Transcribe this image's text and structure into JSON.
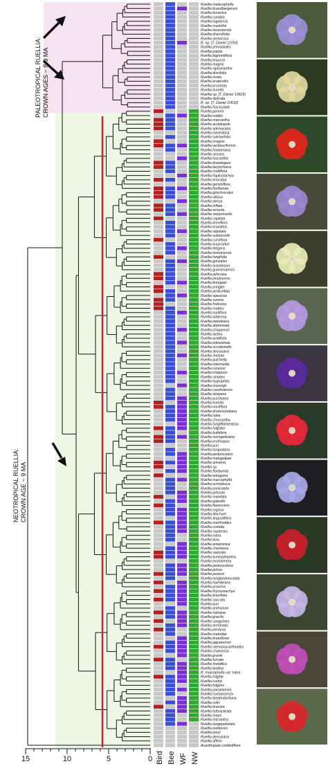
{
  "clade_labels": {
    "paleotropical_line1": "PALEOTROPICAL RUELLIA:",
    "paleotropical_line2": "CROWN AGES ~ 8-9 MA",
    "neotropical_line1": "NEOTROPICAL RUELLIA:",
    "neotropical_line2": "CROWN AGE ~ 9 MA"
  },
  "column_labels": [
    "Bird",
    "Bee",
    "WF",
    "NW"
  ],
  "axis": {
    "ticks": [
      "15",
      "10",
      "5",
      "0"
    ]
  },
  "species": [
    "Ruellia malacophylla",
    "Ruellia brandbergensis",
    "Ruellia boranica",
    "Ruellia cordata",
    "Ruellia togoensis",
    "Ruellia marlothii",
    "Ruellia hereroensis",
    "Ruellia diversifolia",
    "Ruellia nemorosa",
    "R. sp. [T. Daniel 11053]",
    "Ruellia primuloides",
    "Ruellia patula",
    "Ruellia bignoniiflora",
    "Ruellia kraussii",
    "Ruellia magna",
    "Ruellia siphonantha",
    "Ruellia discifolia",
    "Ruellia ovata",
    "Ruellia anaticollis",
    "Ruellia prostrata",
    "Ruellia humilis",
    "Ruellia sp. [T. Daniel 10625]",
    "Ruellia delicata",
    "R. sp. [T. Daniel 10632]",
    "Ruellia fasciculata",
    "Ruellia pereirii",
    "Ruellia nobilis",
    "Ruellia macrantha",
    "Ruellia acutangula",
    "Ruellia adenocalyx",
    "Ruellia tomentosa",
    "Ruellia salviaefolia",
    "Ruellia insignis",
    "Ruellia verbasciformis",
    "Ruellia hookeriana",
    "Ruellia sessea",
    "Ruellia loucantha",
    "Ruellia brandegeei",
    "Ruellia beyrichiana",
    "Ruellia multiflora",
    "Ruellia haplostachya",
    "Ruellia eriocalyx",
    "Ruellia geminiflora",
    "Ruellia floribunda",
    "Ruellia glischrocalyx",
    "Ruellia villosa",
    "Ruellia densa",
    "Ruellia inflata",
    "Ruellia exserta",
    "Ruellia steyermarkii",
    "Ruellia capitata",
    "Ruellia breviflora",
    "Ruellia erianthos",
    "Ruellia stipulata",
    "Ruellia subsessilis",
    "Ruellia curviflora",
    "Ruellia eurycodon",
    "Ruellia elegans",
    "Ruellia hintoniorum",
    "Ruellia longifolia",
    "Ruellia gonzalez",
    "Ruellia lasiobeasa",
    "Ruellia guerreroensis",
    "Ruellia jaliscana",
    "Ruellia jimulcensis",
    "Ruellia bourgaei",
    "Ruellia pringlei",
    "Ruellia pedicellata",
    "Ruellia speciosa",
    "Ruellia sororia",
    "Ruellia fruticosa",
    "Ruellia mattea",
    "Ruellia nudiflora",
    "Ruellia tuberosa",
    "Ruellia tweediana",
    "Ruellia abbreviata",
    "Ruellia chiapensis",
    "Ruellia lactea",
    "Ruellia ovalifolia",
    "Ruellia edwardsae",
    "Ruellia occidentalis",
    "Ruellia devosiana",
    "Ruellia metzae",
    "Ruellia pulchella",
    "Ruellia intermedia",
    "Ruellia runyonii",
    "Ruellia tristanum",
    "Ruellia simplex",
    "Ruellia hygrophila",
    "Ruellia morongii",
    "Ruellia caroliniensis",
    "Ruellia strepens",
    "Ruellia purshiana",
    "Ruellia humilis",
    "Ruellia noctiflora",
    "Ruellia drummondiana",
    "Ruellia lutea",
    "Ruellia chrysantha",
    "Ruellia longifilamentosa",
    "Ruellia fulgidior",
    "Ruellia bulbifera",
    "Ruellia novogaliciana",
    "Ruellia erythropus",
    "Ruellia puri",
    "Ruellia tarapotana",
    "Ruellia peduncularis",
    "Ruellia matagalpae",
    "Ruellia amoena",
    "Ruellia sp.",
    "Ruellia floribunda",
    "Ruellia tetragona",
    "Ruellia macrophylla",
    "Ruellia ochroleuca",
    "Ruellia paniculata",
    "Ruellia pilosula",
    "Ruellia mandata",
    "Ruellia galeottii",
    "Ruellia flavescens",
    "Ruellia rugosa",
    "Ruellia blechum",
    "Ruellia angustiflora",
    "Ruellia menthoides",
    "Ruellia costata",
    "Ruellia saulensis",
    "Ruellia rubra",
    "Ruellia laxa",
    "Ruellia amazonica",
    "Ruellia chartacea",
    "Ruellia saxicola",
    "Ruellia eumorphantha",
    "Ruellia exostemma",
    "Ruellia pedunculosa",
    "Ruellia pilosa",
    "Ruellia pearcei",
    "Ruellia longipedunculata",
    "Ruellia haenkeana",
    "Ruellia proxima",
    "Ruellia thyrsostachya",
    "Ruellia brevifolia",
    "Ruellia saccata",
    "Ruellia puri",
    "Ruellia anthurium",
    "Ruellia rutziana",
    "Ruellia gracilis",
    "Ruellia sanguinea",
    "Ruellia terminalis",
    "Ruellia perdusa",
    "Ruellia matudae",
    "Ruellia breedlovei",
    "Ruellia jaguarensis",
    "Ruellia stemonacanthoides",
    "Ruellia chamessa",
    "Ruellia grantii",
    "Ruellia furcata",
    "Ruellia metallica",
    "Ruellia biolleyi",
    "R. macrophylla var. lutea",
    "Ruellia fulgida",
    "Ruellia rusbyi",
    "Ruellia fulgens",
    "Ruellia panamense",
    "Ruellia costaricensis",
    "Ruellia biedendorfiana",
    "Ruellia solis",
    "Ruellia bractea",
    "Ruellia fulbracteata",
    "Ruellia maya",
    "Ruellia micrantha",
    "Ruellia longepetiolata",
    "Ruellia tuxtlensis",
    "Ruellia paryi",
    "Ruellia devosiana",
    "Ruellia affinis",
    "Acanthopale confertiflora"
  ],
  "traits": {
    "bird": "0000000000000000000000000101110011000110010111011010000100010001101101110000000000000000000001100001011000011010000101000100000011000101010100101010001001000100000010000",
    "bee": "1111111111111111111111111011110101100111010111011101111011101111110111011111111111111111101110111101111011010101111011110111110111011110111101110111011101110111110101111",
    "wf": "0100000001000000000000000010000001001000100100100100010001001000010010001000100100100010010011111111010001111101001110111111001111011101111110111100111110111110101111001",
    "nw": "0000000000000000000000000111111111111111111111111111111111111111111111111111111111111111111111111111111111111111111111111111111111111111111111111111111111111111111111110"
  },
  "colors": {
    "bird": "#b22222",
    "bee": "#3a4fd6",
    "wf": "#7b2fd6",
    "nw": "#2ea82e",
    "absent": "#c8c8c8",
    "paleo_shade": "#f6e3f2",
    "neo_shade": "#eef6e6"
  },
  "photos": [
    {
      "name": "photo-purple-flower",
      "bg": "#4a5a3a",
      "petal": "#9b8fd8"
    },
    {
      "name": "photo-yellow-flower",
      "bg": "#2c3a22",
      "petal": "#e0d8a0"
    },
    {
      "name": "photo-red-flower",
      "bg": "#2f4a2a",
      "petal": "#e0261b"
    },
    {
      "name": "photo-lilac-flower",
      "bg": "#4a4a3a",
      "petal": "#9a88d0"
    },
    {
      "name": "photo-cream-flower",
      "bg": "#3a3e2a",
      "petal": "#e8ecb8"
    },
    {
      "name": "photo-lavender-flower",
      "bg": "#5a6650",
      "petal": "#b59ae0"
    },
    {
      "name": "photo-violet-flower",
      "bg": "#3a3540",
      "petal": "#5a2a9e"
    },
    {
      "name": "photo-scarlet-flower",
      "bg": "#2a3a28",
      "petal": "#e8283a"
    },
    {
      "name": "photo-pale-blue-flower",
      "bg": "#1e1e22",
      "petal": "#a8a8e8"
    },
    {
      "name": "photo-red-tubular-flower",
      "bg": "#2a3826",
      "petal": "#c8202a"
    },
    {
      "name": "photo-white-purple-flower",
      "bg": "#3c4432",
      "petal": "#c6b6e6"
    },
    {
      "name": "photo-magenta-flower",
      "bg": "#4a4638",
      "petal": "#c04fb8"
    },
    {
      "name": "photo-red-slender-flower",
      "bg": "#5a6a4a",
      "petal": "#d8262a"
    }
  ]
}
